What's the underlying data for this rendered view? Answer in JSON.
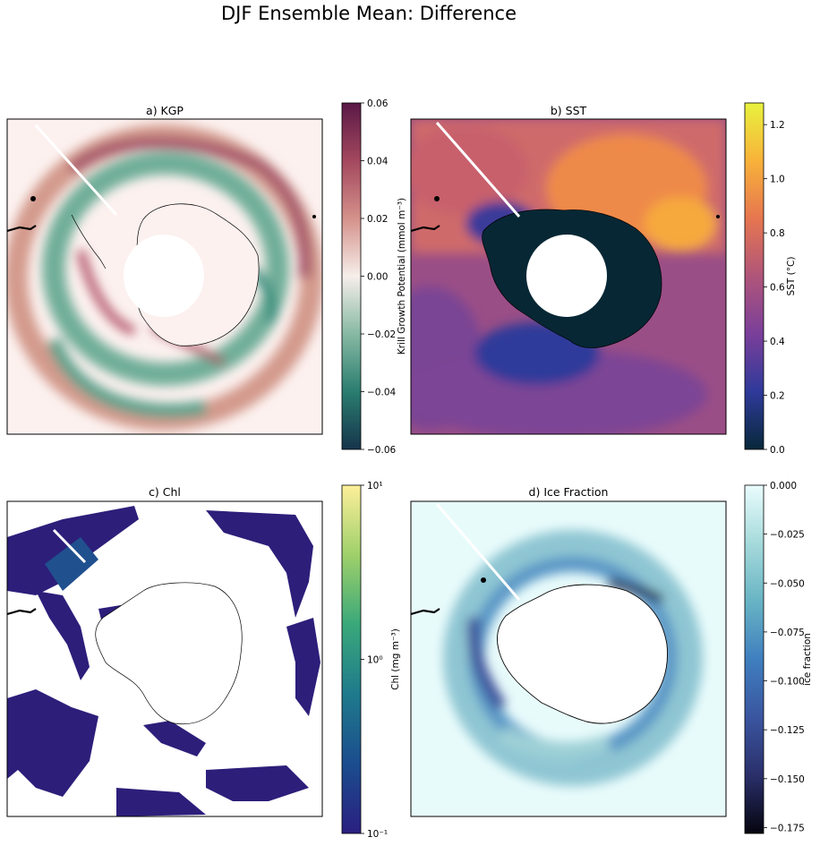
{
  "figure_title": "DJF Ensemble Mean: Difference",
  "chart_data": [
    {
      "type": "heatmap",
      "title": "a) KGP",
      "projection": "south-polar stereographic",
      "colormap": "diverging green-white-red (curl)",
      "colorbar": {
        "label": "Krill Growth Potential (mmol m⁻³)",
        "scale": "linear",
        "range": [
          -0.06,
          0.06
        ],
        "ticks": [
          "0.06",
          "0.04",
          "0.02",
          "0.00",
          "−0.02",
          "−0.04",
          "−0.06"
        ],
        "colors": [
          "#5a1846",
          "#a3485e",
          "#d4918a",
          "#f6eeea",
          "#87b9a3",
          "#2a7d70",
          "#16344b"
        ]
      }
    },
    {
      "type": "heatmap",
      "title": "b) SST",
      "projection": "south-polar stereographic",
      "colormap": "thermal",
      "colorbar": {
        "label": "SST (°C)",
        "scale": "linear",
        "range": [
          0.0,
          1.28
        ],
        "ticks": [
          "1.2",
          "1.0",
          "0.8",
          "0.6",
          "0.4",
          "0.2",
          "0.0"
        ],
        "colors": [
          "#e8f23e",
          "#f8b23a",
          "#e67650",
          "#b0557a",
          "#7a3f9a",
          "#2f3a9a",
          "#07283a"
        ]
      }
    },
    {
      "type": "heatmap",
      "title": "c) Chl",
      "projection": "south-polar stereographic",
      "colormap": "haline",
      "colorbar": {
        "label": "Chl (mg m⁻³)",
        "scale": "log",
        "range": [
          0.1,
          10
        ],
        "ticks": [
          "10¹",
          "10⁰",
          "10⁻¹"
        ],
        "colors": [
          "#fdef9a",
          "#9fd06a",
          "#3aa87a",
          "#1f7a8c",
          "#1b4d8e",
          "#2a1f80"
        ]
      }
    },
    {
      "type": "heatmap",
      "title": "d) Ice Fraction",
      "projection": "south-polar stereographic",
      "colormap": "ice",
      "colorbar": {
        "label": "ice fraction",
        "scale": "linear",
        "range": [
          -0.178,
          0.0
        ],
        "ticks": [
          "0.000",
          "−0.025",
          "−0.050",
          "−0.075",
          "−0.100",
          "−0.125",
          "−0.150",
          "−0.175"
        ],
        "colors": [
          "#eafcfd",
          "#a6dadb",
          "#68b4c4",
          "#3f7fbf",
          "#3a55a0",
          "#2a2f6a",
          "#05050f"
        ]
      }
    }
  ]
}
